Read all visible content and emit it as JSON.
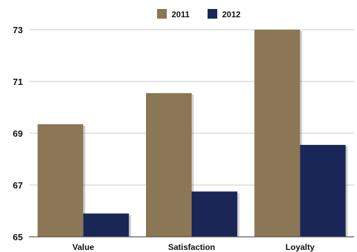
{
  "chart_data": {
    "type": "bar",
    "categories": [
      "Value",
      "Satisfaction",
      "Loyalty"
    ],
    "series": [
      {
        "name": "2011",
        "values": [
          69.35,
          70.55,
          73.0
        ],
        "color": "#8b7655"
      },
      {
        "name": "2012",
        "values": [
          65.9,
          66.75,
          68.55
        ],
        "color": "#1a2756"
      }
    ],
    "ylim": [
      65,
      73
    ],
    "yticks": [
      "65",
      "67",
      "69",
      "71",
      "73"
    ],
    "grid": true,
    "legend_position": "top-center",
    "title": "",
    "xlabel": "",
    "ylabel": ""
  }
}
